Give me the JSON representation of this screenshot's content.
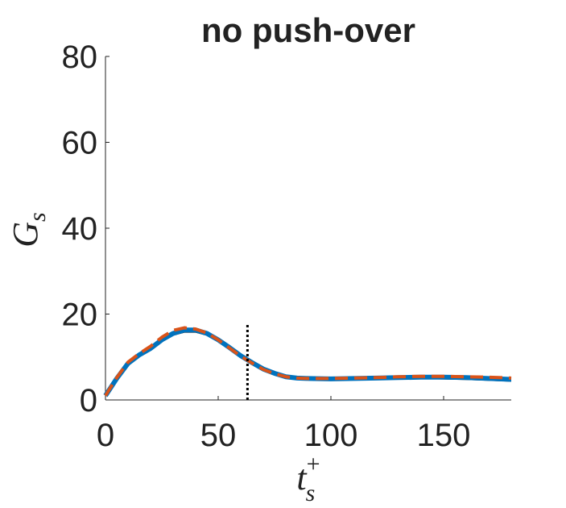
{
  "chart_data": {
    "type": "line",
    "title": "no push-over",
    "xlabel": {
      "base": "t",
      "sub": "s",
      "sup": "+"
    },
    "ylabel": {
      "base": "G",
      "sub": "s"
    },
    "x": [
      0,
      5,
      10,
      15,
      20,
      25,
      30,
      35,
      40,
      45,
      50,
      55,
      60,
      65,
      70,
      75,
      80,
      85,
      90,
      100,
      110,
      120,
      130,
      140,
      150,
      160,
      170,
      180
    ],
    "series": [
      {
        "color": "#000000",
        "width": 1.5,
        "dash": false,
        "values": [
          1,
          4.8,
          8.2,
          10.2,
          11.7,
          13.6,
          15.1,
          15.8,
          15.8,
          15.1,
          13.7,
          12,
          10.2,
          8.6,
          7.1,
          6.1,
          5.3,
          5,
          4.8,
          4.7,
          4.8,
          4.9,
          4.9,
          5,
          4.9,
          4.8,
          4.6,
          4.4
        ]
      },
      {
        "color": "#0072bd",
        "width": 6,
        "dash": false,
        "values": [
          1,
          5,
          8.5,
          10.5,
          12,
          14,
          15.5,
          16.3,
          16.3,
          15.5,
          14,
          12.2,
          10.3,
          8.7,
          7.2,
          6.2,
          5.4,
          5.1,
          5,
          4.9,
          5,
          5.1,
          5.2,
          5.3,
          5.3,
          5.2,
          5,
          4.8
        ]
      },
      {
        "color": "#d95319",
        "width": 4,
        "dash": true,
        "values": [
          1,
          5.2,
          8.8,
          10.8,
          12.5,
          14.6,
          16.2,
          16.8,
          16.5,
          15.6,
          14,
          12.1,
          10.2,
          8.6,
          7.1,
          6.1,
          5.4,
          5.1,
          5,
          5,
          5.1,
          5.2,
          5.4,
          5.5,
          5.5,
          5.4,
          5.3,
          5.1
        ]
      }
    ],
    "marker_line": {
      "x": 63,
      "ylim": [
        0,
        18
      ]
    },
    "xlim": [
      0,
      180
    ],
    "xticks": [
      0,
      50,
      100,
      150
    ],
    "ylim": [
      0,
      80
    ],
    "yticks": [
      0,
      20,
      40,
      60,
      80
    ]
  }
}
